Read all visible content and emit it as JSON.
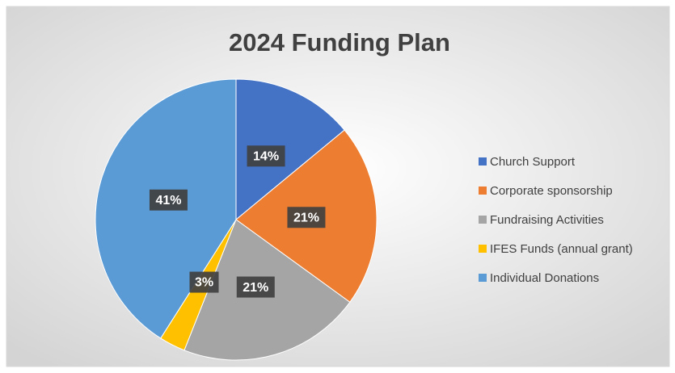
{
  "chart_data": {
    "type": "pie",
    "title": "2024 Funding Plan",
    "categories": [
      "Church Support",
      "Corporate sponsorship",
      "Fundraising Activities",
      "IFES Funds (annual grant)",
      "Individual Donations"
    ],
    "values": [
      14,
      21,
      21,
      3,
      41
    ],
    "value_labels": [
      "14%",
      "21%",
      "21%",
      "3%",
      "41%"
    ],
    "colors": [
      "#4472c4",
      "#ed7d31",
      "#a5a5a5",
      "#ffc000",
      "#5b9bd5"
    ],
    "legend": "right"
  }
}
